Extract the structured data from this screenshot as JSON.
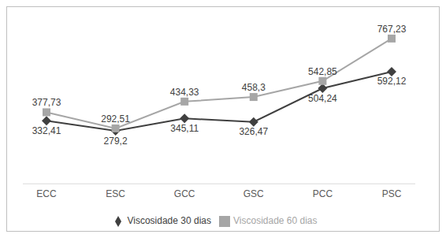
{
  "chart_data": {
    "type": "line",
    "categories": [
      "ECC",
      "ESC",
      "GCC",
      "GSC",
      "PCC",
      "PSC"
    ],
    "series": [
      {
        "name": "Viscosidade 30 dias",
        "color": "#404040",
        "marker": "diamond",
        "values": [
          332.41,
          279.2,
          345.11,
          326.47,
          504.24,
          592.12
        ],
        "value_labels": [
          "332,41",
          "279,2",
          "345,11",
          "326,47",
          "504,24",
          "592,12"
        ]
      },
      {
        "name": "Viscosidade 60 dias",
        "color": "#a6a6a6",
        "marker": "square",
        "values": [
          377.73,
          292.51,
          434.33,
          458.3,
          542.85,
          767.23
        ],
        "value_labels": [
          "377,73",
          "292,51",
          "434,33",
          "458,3",
          "542,85",
          "767,23"
        ]
      }
    ],
    "ylim": [
      0,
      850
    ],
    "data_labels": true,
    "tick_labels": "x",
    "grid": false,
    "legend": "bottom"
  }
}
